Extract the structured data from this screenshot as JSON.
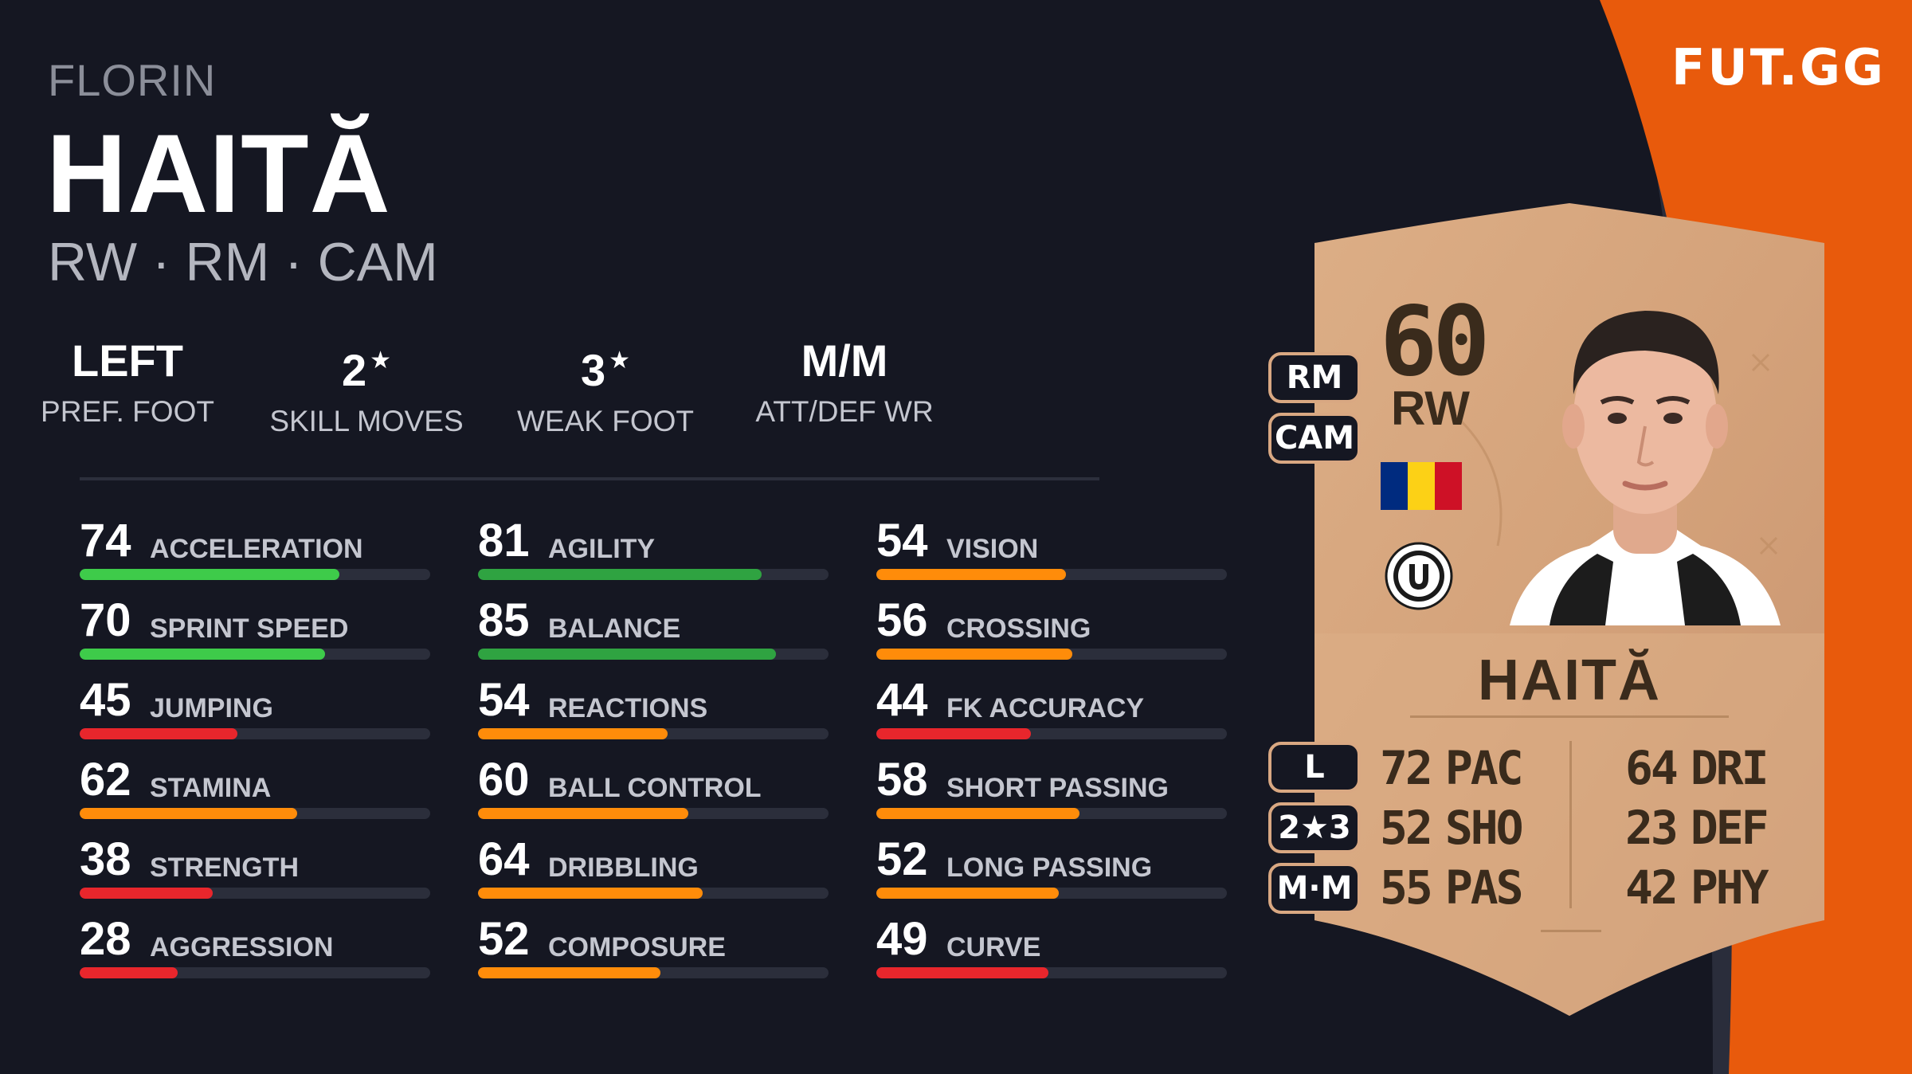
{
  "brand": "FUT.GG",
  "player": {
    "first_name": "FLORIN",
    "last_name": "HAITĂ",
    "positions": "RW · RM · CAM"
  },
  "traits": [
    {
      "value": "LEFT",
      "star": false,
      "label": "PREF. FOOT"
    },
    {
      "value": "2",
      "star": true,
      "label": "SKILL MOVES"
    },
    {
      "value": "3",
      "star": true,
      "label": "WEAK FOOT"
    },
    {
      "value": "M/M",
      "star": false,
      "label": "ATT/DEF WR"
    }
  ],
  "star_glyph": "★",
  "stats": [
    [
      {
        "value": "74",
        "name": "ACCELERATION",
        "fraction": 0.74,
        "color": "#3ecb4a"
      },
      {
        "value": "70",
        "name": "SPRINT SPEED",
        "fraction": 0.7,
        "color": "#3ecb4a"
      },
      {
        "value": "45",
        "name": "JUMPING",
        "fraction": 0.45,
        "color": "#e8262c"
      },
      {
        "value": "62",
        "name": "STAMINA",
        "fraction": 0.62,
        "color": "#ff8c0a"
      },
      {
        "value": "38",
        "name": "STRENGTH",
        "fraction": 0.38,
        "color": "#e8262c"
      },
      {
        "value": "28",
        "name": "AGGRESSION",
        "fraction": 0.28,
        "color": "#e8262c"
      }
    ],
    [
      {
        "value": "81",
        "name": "AGILITY",
        "fraction": 0.81,
        "color": "#2fa341"
      },
      {
        "value": "85",
        "name": "BALANCE",
        "fraction": 0.85,
        "color": "#2fa341"
      },
      {
        "value": "54",
        "name": "REACTIONS",
        "fraction": 0.54,
        "color": "#ff8c0a"
      },
      {
        "value": "60",
        "name": "BALL CONTROL",
        "fraction": 0.6,
        "color": "#ff8c0a"
      },
      {
        "value": "64",
        "name": "DRIBBLING",
        "fraction": 0.64,
        "color": "#ff8c0a"
      },
      {
        "value": "52",
        "name": "COMPOSURE",
        "fraction": 0.52,
        "color": "#ff8c0a"
      }
    ],
    [
      {
        "value": "54",
        "name": "VISION",
        "fraction": 0.54,
        "color": "#ff8c0a"
      },
      {
        "value": "56",
        "name": "CROSSING",
        "fraction": 0.56,
        "color": "#ff8c0a"
      },
      {
        "value": "44",
        "name": "FK ACCURACY",
        "fraction": 0.44,
        "color": "#e8262c"
      },
      {
        "value": "58",
        "name": "SHORT PASSING",
        "fraction": 0.58,
        "color": "#ff8c0a"
      },
      {
        "value": "52",
        "name": "LONG PASSING",
        "fraction": 0.52,
        "color": "#ff8c0a"
      },
      {
        "value": "49",
        "name": "CURVE",
        "fraction": 0.49,
        "color": "#e8262c"
      }
    ]
  ],
  "card": {
    "rating": "60",
    "position": "RW",
    "name": "HAITĂ",
    "alt_positions": [
      "RM",
      "CAM"
    ],
    "foot": "L",
    "skill_weak": "2★3",
    "work_rate": "M·M",
    "face_stats": [
      {
        "value": "72",
        "label": "PAC"
      },
      {
        "value": "52",
        "label": "SHO"
      },
      {
        "value": "55",
        "label": "PAS"
      },
      {
        "value": "64",
        "label": "DRI"
      },
      {
        "value": "23",
        "label": "DEF"
      },
      {
        "value": "42",
        "label": "PHY"
      }
    ],
    "flag_colors": [
      "#002b7f",
      "#fcd116",
      "#ce1126"
    ],
    "club_badge_icon": "club-crest-icon"
  },
  "colors": {
    "background": "#151722",
    "accent_orange": "#e85a0c",
    "card_bronze": "#d9a882"
  }
}
